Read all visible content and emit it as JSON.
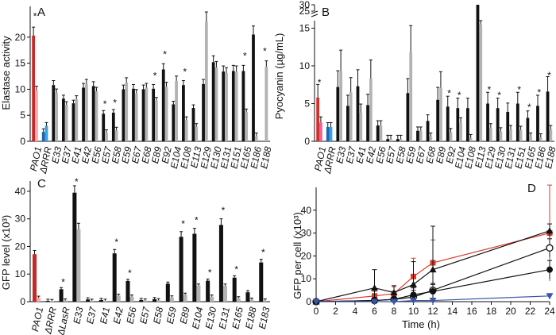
{
  "chart_data": [
    {
      "type": "bar",
      "panel_label": "A",
      "ylabel": "Elastase activity",
      "ylim": [
        0,
        25
      ],
      "yticks": [
        0,
        5,
        10,
        15,
        20
      ],
      "categories": [
        "PAO1",
        "ΔRRR",
        "E33",
        "E37",
        "E41",
        "E42",
        "E56",
        "E57",
        "E58",
        "E59",
        "E67",
        "E68",
        "E89",
        "E92",
        "E104",
        "E108",
        "E113",
        "E129",
        "E130",
        "E131",
        "E151",
        "E165",
        "E186",
        "E188"
      ],
      "series": [
        {
          "values": [
            20.3,
            1.8,
            10.8,
            8.2,
            7.3,
            10.3,
            10.6,
            5.3,
            5.5,
            10.0,
            10.1,
            10.0,
            10.1,
            13.8,
            7.1,
            10.8,
            6.4,
            11.0,
            15.2,
            13.4,
            13.5,
            13.5,
            20.5,
            null
          ]
        },
        {
          "values": [
            9.8,
            3.0,
            9.3,
            7.0,
            8.1,
            11.0,
            9.6,
            1.6,
            2.1,
            11.3,
            9.2,
            10.3,
            7.8,
            10.5,
            11.6,
            4.1,
            2.8,
            23.0,
            14.2,
            13.1,
            13.4,
            5.6,
            1.0,
            14.3
          ]
        }
      ],
      "colors_special": {
        "PAO1": [
          "#c62828",
          "#f4a9ad"
        ],
        "ΔRRR": [
          "#1e63b6",
          "#36a5e0"
        ]
      },
      "asterisks": [
        "PAO1",
        "E57",
        "E58",
        "E89",
        "E92",
        "E108",
        "E165",
        "E188"
      ]
    },
    {
      "type": "bar",
      "panel_label": "B",
      "ylabel": "Pyocyanin (µg/mL)",
      "ylim": [
        0,
        30
      ],
      "yticks": [
        0,
        5,
        10,
        15
      ],
      "yticks_broken": [
        25,
        30
      ],
      "categories": [
        "PAO1",
        "ΔRRR",
        "E33",
        "E37",
        "E41",
        "E42",
        "E56",
        "E57",
        "E58",
        "E59",
        "E67",
        "E68",
        "E89",
        "E92",
        "E104",
        "E108",
        "E113",
        "E129",
        "E130",
        "E131",
        "E151",
        "E165",
        "E186",
        "E188"
      ],
      "series": [
        {
          "values": [
            5.8,
            1.9,
            7.2,
            4.7,
            7.3,
            4.8,
            2.1,
            0.3,
            0.3,
            6.4,
            1.4,
            2.7,
            5.5,
            4.6,
            4.4,
            4.4,
            29,
            5.0,
            4.4,
            3.9,
            5.0,
            3.1,
            4.7,
            6.6
          ]
        },
        {
          "values": [
            2.5,
            1.9,
            9.3,
            6.5,
            3.8,
            8.3,
            2.1,
            0.3,
            0.3,
            11.8,
            1.4,
            0.6,
            7.1,
            1.2,
            2.4,
            0.4,
            15.5,
            1.8,
            1.3,
            1.6,
            1.5,
            0.6,
            0.5,
            1.6
          ]
        }
      ],
      "asterisks": [
        "PAO1",
        "E92",
        "E104",
        "E129",
        "E130",
        "E151",
        "E165",
        "E186",
        "E188"
      ]
    },
    {
      "type": "bar",
      "panel_label": "C",
      "ylabel": "GFP level (x10³)",
      "ylim": [
        0,
        42
      ],
      "yticks": [
        0,
        10,
        20,
        30,
        40
      ],
      "categories": [
        "PAO1",
        "ΔRRR",
        "ΔLasR",
        "E33",
        "E37",
        "E41",
        "E42",
        "E56",
        "E57",
        "E58",
        "E59",
        "E89",
        "E104",
        "E130",
        "E131",
        "E165",
        "E188",
        "E183"
      ],
      "series": [
        {
          "values": [
            17.2,
            0.3,
            4.5,
            39.5,
            0.8,
            0.6,
            17.5,
            7.5,
            0.6,
            0.9,
            6.5,
            23.5,
            24.6,
            7.6,
            27.8,
            8.7,
            3.4,
            14.2
          ]
        },
        {
          "values": [
            1.4,
            0.2,
            0.4,
            26.3,
            0.3,
            0.3,
            2.1,
            1.8,
            0.4,
            0.5,
            1.5,
            2.5,
            5.8,
            1.8,
            5.8,
            1.2,
            0.7,
            0.4
          ]
        }
      ],
      "asterisks": [
        "ΔLasR",
        "E33",
        "E42",
        "E56",
        "E89",
        "E104",
        "E130",
        "E131",
        "E165",
        "E183"
      ]
    },
    {
      "type": "line",
      "panel_label": "D",
      "xlabel": "Time (h)",
      "ylabel": "GFP per cell (x10³)",
      "xlim": [
        0,
        24
      ],
      "ylim": [
        0,
        50
      ],
      "xticks": [
        0,
        2,
        4,
        6,
        8,
        10,
        12,
        14,
        16,
        18,
        20,
        22,
        24
      ],
      "yticks": [
        0,
        10,
        20,
        30,
        40
      ],
      "series": [
        {
          "marker": "square",
          "color": "#d93a2b",
          "x": [
            0,
            6,
            8,
            10,
            12,
            24
          ],
          "y": [
            0,
            2.5,
            3.5,
            11,
            17,
            30
          ],
          "err": [
            0,
            2,
            3,
            8,
            10,
            21
          ]
        },
        {
          "marker": "triangle",
          "color": "#111111",
          "x": [
            0,
            6,
            8,
            10,
            12,
            24
          ],
          "y": [
            0,
            6,
            4,
            7.5,
            14,
            31
          ],
          "err": [
            0,
            8,
            3,
            10,
            19,
            3
          ]
        },
        {
          "marker": "open-circle",
          "color": "#111111",
          "x": [
            0,
            6,
            8,
            10,
            12,
            24
          ],
          "y": [
            0,
            0.5,
            1,
            2,
            5,
            23.5
          ],
          "err": [
            0,
            1,
            2,
            3,
            3,
            4
          ]
        },
        {
          "marker": "filled-circle",
          "color": "#111111",
          "x": [
            0,
            6,
            8,
            10,
            12,
            24
          ],
          "y": [
            0,
            0.5,
            1,
            3,
            4.5,
            14
          ],
          "err": [
            0,
            1,
            1,
            3,
            3,
            4
          ]
        },
        {
          "marker": "down-triangle",
          "color": "#3a56a8",
          "x": [
            0,
            6,
            8,
            10,
            12,
            24
          ],
          "y": [
            0,
            0,
            0,
            0.5,
            0.5,
            2.5
          ],
          "err": [
            0,
            0,
            0,
            0,
            0,
            0
          ]
        }
      ]
    }
  ],
  "colors": {
    "black": "#111111",
    "gray": "#b3b3b3"
  }
}
